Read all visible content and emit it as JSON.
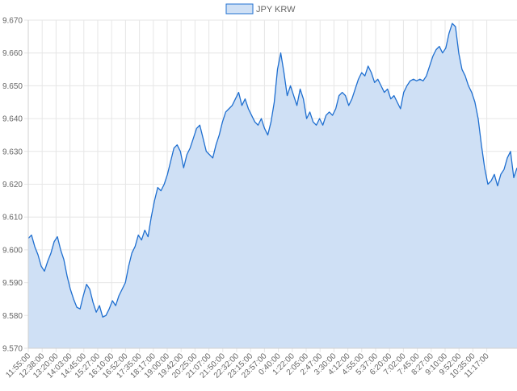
{
  "chart_data": {
    "type": "area",
    "title": "",
    "xlabel": "",
    "ylabel": "",
    "legend": {
      "position": "top",
      "label": "JPY KRW"
    },
    "colors": {
      "line": "#1f6fd0",
      "fill": "#cfe0f5",
      "grid": "#e6e6e6",
      "axis_text": "#666666"
    },
    "grid": true,
    "ylim": [
      9.57,
      9.67
    ],
    "yticks": [
      "9.570",
      "9.580",
      "9.590",
      "9.600",
      "9.610",
      "9.620",
      "9.630",
      "9.640",
      "9.650",
      "9.660",
      "9.670"
    ],
    "x_tick_labels": [
      "11:55:00",
      "12:38:00",
      "13:20:00",
      "14:03:00",
      "14:45:00",
      "15:27:00",
      "16:10:00",
      "16:52:00",
      "17:35:00",
      "18:17:00",
      "19:00:00",
      "19:42:00",
      "20:25:00",
      "21:07:00",
      "21:50:00",
      "22:32:00",
      "23:15:00",
      "23:57:00",
      "0:40:00",
      "1:22:00",
      "2:05:00",
      "2:47:00",
      "3:30:00",
      "4:12:00",
      "4:55:00",
      "5:37:00",
      "6:20:00",
      "7:02:00",
      "7:45:00",
      "8:27:00",
      "9:10:00",
      "9:52:00",
      "10:35:00",
      "11:17:00"
    ],
    "series": [
      {
        "name": "JPY KRW",
        "values": [
          9.6035,
          9.6045,
          9.601,
          9.5985,
          9.595,
          9.5935,
          9.5965,
          9.599,
          9.6025,
          9.604,
          9.6,
          9.597,
          9.592,
          9.588,
          9.585,
          9.5825,
          9.582,
          9.586,
          9.5895,
          9.588,
          9.584,
          9.581,
          9.583,
          9.5795,
          9.58,
          9.582,
          9.5845,
          9.583,
          9.586,
          9.588,
          9.59,
          9.595,
          9.599,
          9.601,
          9.6045,
          9.603,
          9.606,
          9.604,
          9.61,
          9.615,
          9.619,
          9.618,
          9.62,
          9.623,
          9.627,
          9.631,
          9.632,
          9.63,
          9.625,
          9.629,
          9.631,
          9.634,
          9.637,
          9.638,
          9.634,
          9.63,
          9.629,
          9.628,
          9.632,
          9.635,
          9.639,
          9.642,
          9.643,
          9.644,
          9.646,
          9.648,
          9.644,
          9.646,
          9.643,
          9.641,
          9.639,
          9.638,
          9.64,
          9.637,
          9.635,
          9.639,
          9.645,
          9.655,
          9.66,
          9.654,
          9.647,
          9.65,
          9.647,
          9.644,
          9.649,
          9.646,
          9.64,
          9.642,
          9.639,
          9.638,
          9.64,
          9.638,
          9.641,
          9.642,
          9.641,
          9.643,
          9.647,
          9.648,
          9.647,
          9.644,
          9.646,
          9.649,
          9.652,
          9.654,
          9.653,
          9.656,
          9.654,
          9.651,
          9.652,
          9.65,
          9.648,
          9.649,
          9.646,
          9.647,
          9.645,
          9.643,
          9.648,
          9.65,
          9.6515,
          9.652,
          9.6515,
          9.652,
          9.6515,
          9.653,
          9.656,
          9.659,
          9.661,
          9.662,
          9.66,
          9.6615,
          9.666,
          9.669,
          9.668,
          9.66,
          9.655,
          9.653,
          9.65,
          9.648,
          9.645,
          9.64,
          9.632,
          9.625,
          9.62,
          9.621,
          9.623,
          9.6195,
          9.623,
          9.6245,
          9.628,
          9.63,
          9.622,
          9.625
        ]
      }
    ]
  }
}
